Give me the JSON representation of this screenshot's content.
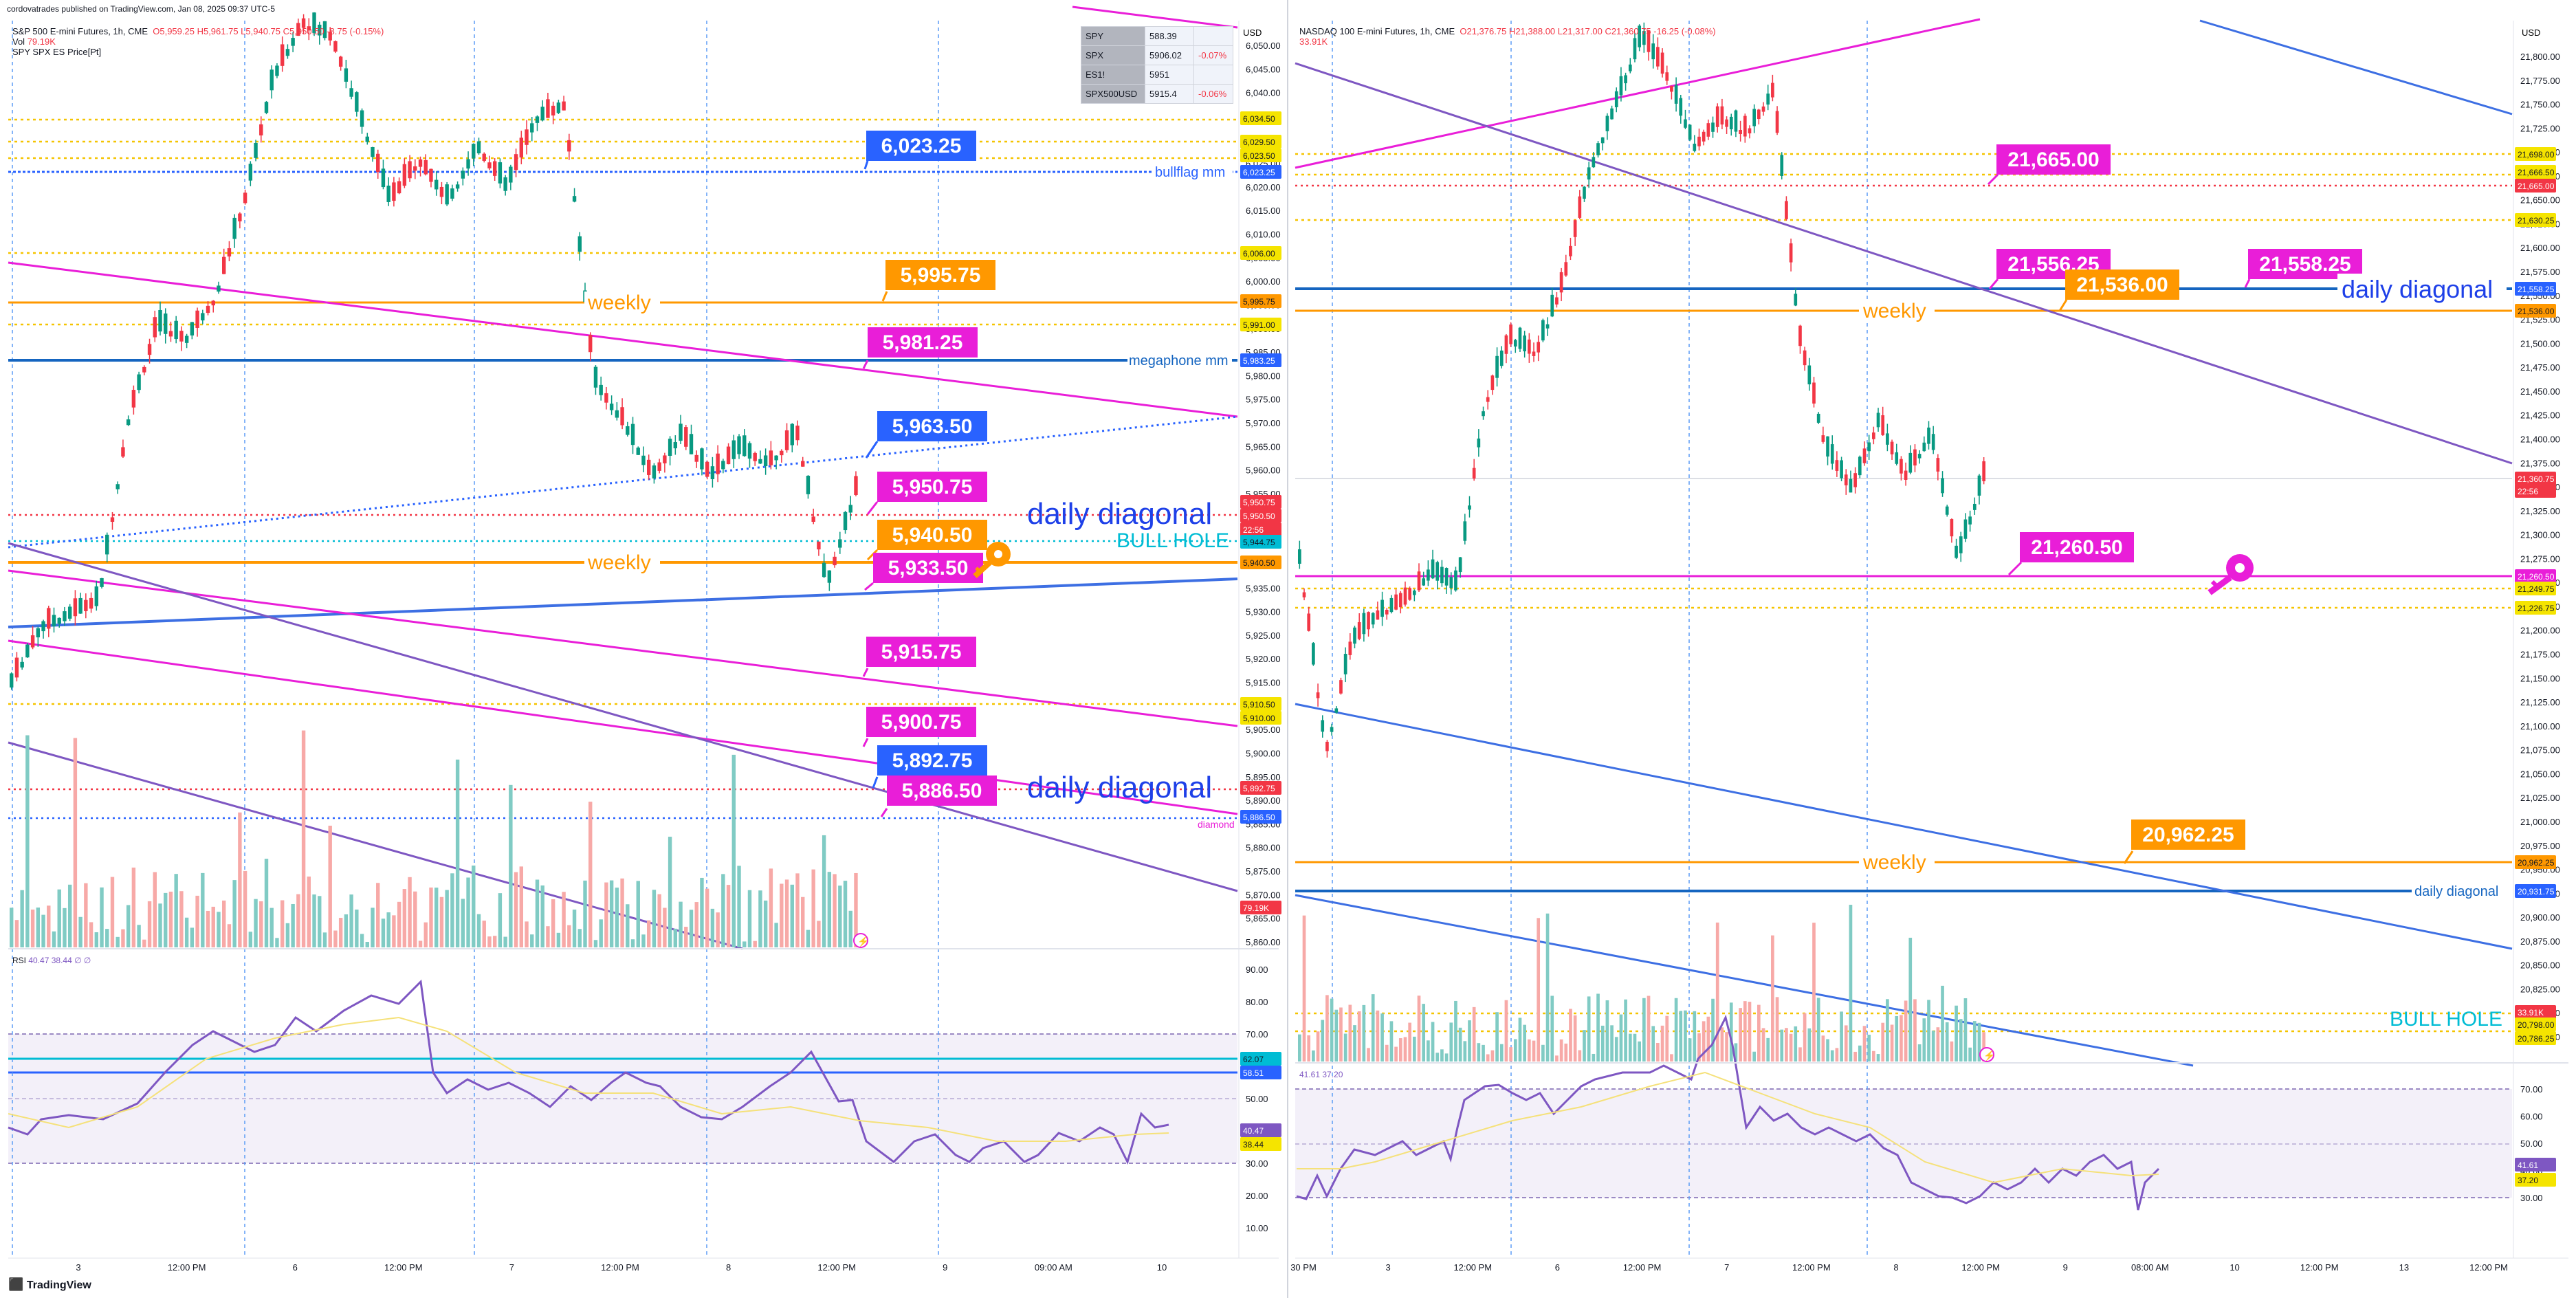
{
  "byline": "cordovatrades published on TradingView.com, Jan 08, 2025 09:37 UTC-5",
  "brand": "TradingView",
  "left": {
    "title": "S&P 500 E-mini Futures, 1h, CME",
    "ohlc": "O5,959.25 H5,961.75 L5,940.75 C5,950.50 -8.75 (-0.15%)",
    "vol_label": "Vol",
    "vol_value": "79.19K",
    "compare_label": "SPY SPX ES Price[Pt]",
    "currency": "USD",
    "symbols": [
      {
        "s": "SPY",
        "p": "588.39",
        "c": ""
      },
      {
        "s": "SPX",
        "p": "5906.02",
        "c": "-0.07%"
      },
      {
        "s": "ES1!",
        "p": "5951",
        "c": ""
      },
      {
        "s": "SPX500USD",
        "p": "5915.4",
        "c": "-0.06%"
      }
    ],
    "price_ticks": [
      "6,050.00",
      "6,045.00",
      "6,040.00",
      "6,035.00",
      "6,030.00",
      "6,025.00",
      "6,020.00",
      "6,015.00",
      "6,010.00",
      "6,005.00",
      "6,000.00",
      "5,995.00",
      "5,990.00",
      "5,985.00",
      "5,980.00",
      "5,975.00",
      "5,970.00",
      "5,965.00",
      "5,960.00",
      "5,955.00",
      "5,950.00",
      "5,945.00",
      "5,940.00",
      "5,935.00",
      "5,930.00",
      "5,925.00",
      "5,920.00",
      "5,915.00",
      "5,910.00",
      "5,905.00",
      "5,900.00",
      "5,895.00",
      "5,890.00",
      "5,885.00",
      "5,880.00",
      "5,875.00",
      "5,870.00",
      "5,865.00",
      "5,860.00"
    ],
    "rsi_ticks": [
      "90.00",
      "80.00",
      "70.00",
      "60.00",
      "50.00",
      "40.00",
      "30.00",
      "20.00",
      "10.00"
    ],
    "rsi_label": "RSI",
    "rsi_values": "40.47  38.44  ∅  ∅",
    "time_labels": [
      "3",
      "12:00 PM",
      "6",
      "12:00 PM",
      "7",
      "12:00 PM",
      "8",
      "12:00 PM",
      "9",
      "09:00 AM",
      "10"
    ],
    "callouts": [
      "6,023.25",
      "5,995.75",
      "5,981.25",
      "5,963.50",
      "5,950.75",
      "5,940.50",
      "5,933.50",
      "5,915.75",
      "5,900.75",
      "5,892.75",
      "5,886.50"
    ],
    "axis_tags": [
      "6,034.50",
      "6,029.50",
      "6,023.50",
      "6,023.25",
      "6,006.00",
      "5,995.75",
      "5,991.00",
      "5,983.25",
      "5,950.75",
      "5,950.50",
      "22:56",
      "5,944.75",
      "5,940.50",
      "5,910.50",
      "5,910.00",
      "5,892.75",
      "5,886.50",
      "79.19K",
      "62.07",
      "58.51",
      "40.47",
      "38.44"
    ],
    "text_labels": {
      "weekly": "weekly",
      "bullflag": "bullflag mm",
      "megaphone": "megaphone mm",
      "daily_diagonal": "daily diagonal",
      "bull_hole": "BULL HOLE",
      "diamond": "diamond"
    }
  },
  "right": {
    "title": "NASDAQ 100 E-mini Futures, 1h, CME",
    "ohlc": "O21,376.75 H21,388.00 L21,317.00 C21,360.75 -16.25 (-0.08%)",
    "vol_value": "33.91K",
    "currency": "USD",
    "price_ticks": [
      "21,800.00",
      "21,775.00",
      "21,750.00",
      "21,725.00",
      "21,700.00",
      "21,675.00",
      "21,650.00",
      "21,625.00",
      "21,600.00",
      "21,575.00",
      "21,550.00",
      "21,525.00",
      "21,500.00",
      "21,475.00",
      "21,450.00",
      "21,425.00",
      "21,400.00",
      "21,375.00",
      "21,350.00",
      "21,325.00",
      "21,300.00",
      "21,275.00",
      "21,250.00",
      "21,225.00",
      "21,200.00",
      "21,175.00",
      "21,150.00",
      "21,125.00",
      "21,100.00",
      "21,075.00",
      "21,050.00",
      "21,025.00",
      "21,000.00",
      "20,975.00",
      "20,950.00",
      "20,925.00",
      "20,900.00",
      "20,875.00",
      "20,850.00",
      "20,825.00",
      "20,800.00",
      "20,775.00"
    ],
    "rsi_ticks": [
      "70.00",
      "60.00",
      "50.00",
      "40.00",
      "30.00"
    ],
    "rsi_values": "41.61  37.20",
    "time_labels": [
      "30 PM",
      "3",
      "12:00 PM",
      "6",
      "12:00 PM",
      "7",
      "12:00 PM",
      "8",
      "12:00 PM",
      "9",
      "08:00 AM",
      "10",
      "12:00 PM",
      "13",
      "12:00 PM"
    ],
    "callouts": [
      "21,665.00",
      "21,556.25",
      "21,536.00",
      "21,558.25",
      "21,260.50",
      "20,962.25"
    ],
    "axis_tags": [
      "21,698.00",
      "21,666.50",
      "21,665.00",
      "21,630.25",
      "21,558.25",
      "21,536.00",
      "21,360.75",
      "22:56",
      "21,260.50",
      "21,249.75",
      "21,226.75",
      "20,962.25",
      "20,931.75",
      "33.91K",
      "20,798.00",
      "20,786.25",
      "41.61",
      "37.20"
    ],
    "text_labels": {
      "weekly": "weekly",
      "daily_diagonal": "daily diagonal",
      "bull_hole": "BULL HOLE"
    }
  }
}
